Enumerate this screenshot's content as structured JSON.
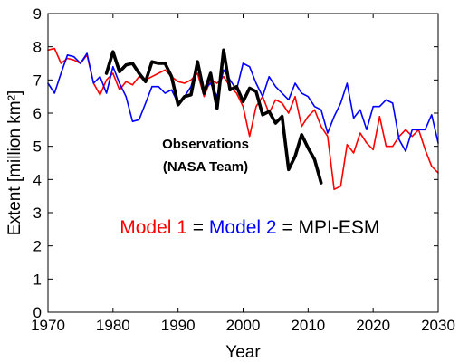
{
  "chart_data": {
    "type": "line",
    "xlabel": "Year",
    "ylabel": "Extent [million km²]",
    "xlim": [
      1970,
      2030
    ],
    "ylim": [
      0,
      9
    ],
    "xticks": [
      1970,
      1980,
      1990,
      2000,
      2010,
      2020,
      2030
    ],
    "yticks": [
      0,
      1,
      2,
      3,
      4,
      5,
      6,
      7,
      8,
      9
    ],
    "grid": false,
    "annotation": [
      "Observations",
      "(NASA Team)"
    ],
    "legend_text": [
      {
        "text": "Model 1",
        "color": "#ff0000"
      },
      {
        "text": " = ",
        "color": "#000000"
      },
      {
        "text": "Model 2",
        "color": "#0000ff"
      },
      {
        "text": " = MPI-ESM",
        "color": "#000000"
      }
    ],
    "series": [
      {
        "color": "#ff0000",
        "x": [
          1970,
          1971,
          1972,
          1973,
          1974,
          1975,
          1976,
          1977,
          1978,
          1979,
          1980,
          1981,
          1982,
          1983,
          1984,
          1985,
          1986,
          1987,
          1988,
          1989,
          1990,
          1991,
          1992,
          1993,
          1994,
          1995,
          1996,
          1997,
          1998,
          1999,
          2000,
          2001,
          2002,
          2003,
          2004,
          2005,
          2006,
          2007,
          2008,
          2009,
          2010,
          2011,
          2012,
          2013,
          2014,
          2015,
          2016,
          2017,
          2018,
          2019,
          2020,
          2021,
          2022,
          2023,
          2024,
          2025,
          2026,
          2027,
          2028,
          2029,
          2030
        ],
        "y": [
          7.9,
          7.95,
          7.5,
          7.65,
          7.6,
          7.5,
          7.75,
          6.9,
          6.55,
          7.0,
          7.2,
          6.7,
          6.95,
          6.85,
          7.1,
          7.0,
          7.1,
          7.2,
          7.3,
          7.1,
          6.95,
          6.9,
          7.0,
          7.2,
          6.5,
          7.0,
          6.9,
          7.1,
          6.8,
          6.6,
          6.2,
          5.3,
          6.2,
          6.5,
          6.0,
          6.4,
          6.3,
          6.0,
          6.5,
          5.6,
          5.9,
          6.1,
          5.6,
          5.3,
          3.7,
          3.8,
          5.05,
          4.8,
          5.4,
          5.1,
          4.9,
          5.9,
          5.0,
          5.0,
          5.3,
          5.5,
          5.3,
          5.5,
          4.9,
          4.4,
          4.2
        ]
      },
      {
        "color": "#0000ff",
        "x": [
          1970,
          1971,
          1972,
          1973,
          1974,
          1975,
          1976,
          1977,
          1978,
          1979,
          1980,
          1981,
          1982,
          1983,
          1984,
          1985,
          1986,
          1987,
          1988,
          1989,
          1990,
          1991,
          1992,
          1993,
          1994,
          1995,
          1996,
          1997,
          1998,
          1999,
          2000,
          2001,
          2002,
          2003,
          2004,
          2005,
          2006,
          2007,
          2008,
          2009,
          2010,
          2011,
          2012,
          2013,
          2014,
          2015,
          2016,
          2017,
          2018,
          2019,
          2020,
          2021,
          2022,
          2023,
          2024,
          2025,
          2026,
          2027,
          2028,
          2029,
          2030
        ],
        "y": [
          6.9,
          6.6,
          7.2,
          7.75,
          7.7,
          7.5,
          7.8,
          6.9,
          7.1,
          6.6,
          7.4,
          6.9,
          6.5,
          5.75,
          5.8,
          6.3,
          6.8,
          6.8,
          6.6,
          6.7,
          6.3,
          6.5,
          6.8,
          7.5,
          6.7,
          6.9,
          6.5,
          7.3,
          7.0,
          6.7,
          7.5,
          7.4,
          6.9,
          6.5,
          7.1,
          6.8,
          6.6,
          6.4,
          6.9,
          6.6,
          6.5,
          6.2,
          6.1,
          5.4,
          5.9,
          6.3,
          6.9,
          5.85,
          6.1,
          5.5,
          6.2,
          6.2,
          6.4,
          6.3,
          5.2,
          4.85,
          5.5,
          5.5,
          5.5,
          5.95,
          5.1
        ]
      },
      {
        "color": "#000000",
        "x": [
          1979,
          1980,
          1981,
          1982,
          1983,
          1984,
          1985,
          1986,
          1987,
          1988,
          1989,
          1990,
          1991,
          1992,
          1993,
          1994,
          1995,
          1996,
          1997,
          1998,
          1999,
          2000,
          2001,
          2002,
          2003,
          2004,
          2005,
          2006,
          2007,
          2008,
          2009,
          2010,
          2011,
          2012,
          2013
        ],
        "y": [
          7.2,
          7.85,
          7.25,
          7.45,
          7.5,
          7.2,
          6.95,
          7.55,
          7.5,
          7.5,
          7.1,
          6.25,
          6.5,
          6.55,
          7.55,
          6.6,
          7.2,
          6.15,
          7.9,
          6.7,
          6.8,
          6.35,
          6.75,
          6.65,
          5.95,
          6.05,
          5.7,
          5.9,
          4.3,
          4.7,
          5.35,
          4.95,
          4.6,
          3.9,
          null
        ]
      }
    ]
  }
}
